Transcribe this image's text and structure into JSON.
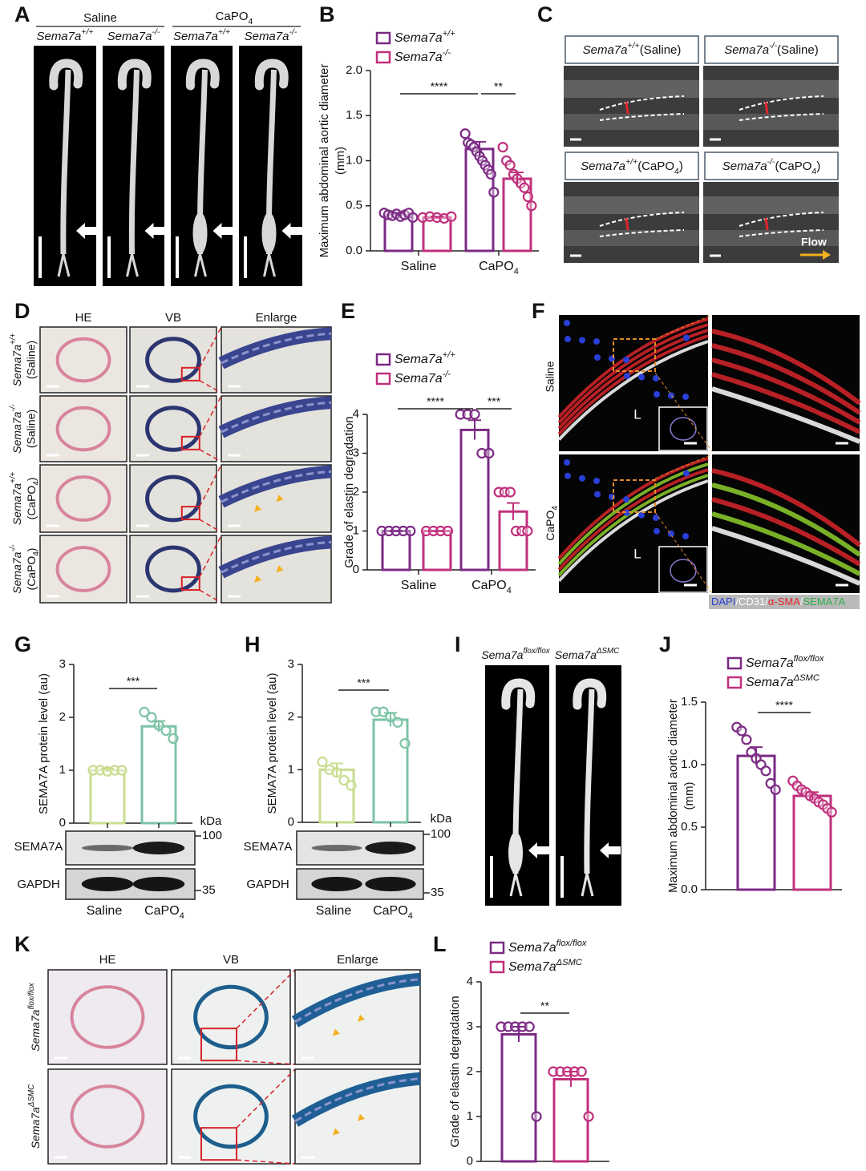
{
  "panel_labels": [
    "A",
    "B",
    "C",
    "D",
    "E",
    "F",
    "G",
    "H",
    "I",
    "J",
    "K",
    "L"
  ],
  "panel_a": {
    "groups": [
      "Saline",
      [
        {
          "text": "CaPO"
        },
        {
          "text": "4",
          "style": "sub"
        }
      ]
    ],
    "columns": [
      [
        {
          "text": "Sema7a",
          "style": "italic"
        },
        {
          "text": "+/+",
          "style": "sup italic"
        }
      ],
      [
        {
          "text": "Sema7a",
          "style": "italic"
        },
        {
          "text": "-/-",
          "style": "sup italic"
        }
      ],
      [
        {
          "text": "Sema7a",
          "style": "italic"
        },
        {
          "text": "+/+",
          "style": "sup italic"
        }
      ],
      [
        {
          "text": "Sema7a",
          "style": "italic"
        },
        {
          "text": "-/-",
          "style": "sup italic"
        }
      ]
    ]
  },
  "panel_c": {
    "images": [
      [
        {
          "text": "Sema7a",
          "style": "italic"
        },
        {
          "text": "+/+",
          "style": "sup italic"
        },
        {
          "text": "(Saline)"
        }
      ],
      [
        {
          "text": "Sema7a",
          "style": "italic"
        },
        {
          "text": "-/-",
          "style": "sup italic"
        },
        {
          "text": "(Saline)"
        }
      ],
      [
        {
          "text": "Sema7a",
          "style": "italic"
        },
        {
          "text": "+/+",
          "style": "sup italic"
        },
        {
          "text": "(CaPO"
        },
        {
          "text": "4",
          "style": "sub"
        },
        {
          "text": ")"
        }
      ],
      [
        {
          "text": "Sema7a",
          "style": "italic"
        },
        {
          "text": "-/-",
          "style": "sup italic"
        },
        {
          "text": "(CaPO"
        },
        {
          "text": "4",
          "style": "sub"
        },
        {
          "text": ")"
        }
      ]
    ],
    "flow": "Flow"
  },
  "panel_d": {
    "columns": [
      "HE",
      "VB",
      "Enlarge"
    ],
    "rows": [
      [
        [
          {
            "text": "Sema7a",
            "style": "italic"
          },
          {
            "text": "+/+",
            "style": "sup italic"
          }
        ],
        "(Saline)"
      ],
      [
        [
          {
            "text": "Sema7a",
            "style": "italic"
          },
          {
            "text": "-/-",
            "style": "sup italic"
          }
        ],
        "(Saline)"
      ],
      [
        [
          {
            "text": "Sema7a",
            "style": "italic"
          },
          {
            "text": "+/+",
            "style": "sup italic"
          }
        ],
        [
          {
            "text": "(CaPO"
          },
          {
            "text": "4",
            "style": "sub"
          },
          {
            "text": ")"
          }
        ]
      ],
      [
        [
          {
            "text": "Sema7a",
            "style": "italic"
          },
          {
            "text": "-/-",
            "style": "sup italic"
          }
        ],
        [
          {
            "text": "(CaPO"
          },
          {
            "text": "4",
            "style": "sub"
          },
          {
            "text": ")"
          }
        ]
      ]
    ]
  },
  "panel_f": {
    "rows": [
      "Saline",
      [
        {
          "text": "CaPO"
        },
        {
          "text": "4",
          "style": "sub"
        }
      ]
    ],
    "lumen": "L",
    "stains": [
      {
        "text": "DAPI",
        "color": "#2a3fd8"
      },
      {
        "text": "CD31",
        "color": "#ffffff"
      },
      {
        "text": "α-SMA",
        "color": "#e0242a"
      },
      {
        "text": "SEMA7A",
        "color": "#2fae4a"
      }
    ],
    "separator": "/"
  },
  "panel_i": {
    "columns": [
      [
        {
          "text": "Sema7a",
          "style": "italic"
        },
        {
          "text": "flox/flox",
          "style": "sup italic"
        }
      ],
      [
        {
          "text": "Sema7a",
          "style": "italic"
        },
        {
          "text": "ΔSMC",
          "style": "sup italic"
        }
      ]
    ]
  },
  "panel_k": {
    "columns": [
      "HE",
      "VB",
      "Enlarge"
    ],
    "rows": [
      [
        {
          "text": "Sema7a",
          "style": "italic"
        },
        {
          "text": "flox/flox",
          "style": "sup italic"
        }
      ],
      [
        {
          "text": "Sema7a",
          "style": "italic"
        },
        {
          "text": "ΔSMC",
          "style": "sup italic"
        }
      ]
    ]
  },
  "chart_data": [
    {
      "type": "bar",
      "ylabel": [
        "Maximum abdominal aortic diameter",
        "(mm)"
      ],
      "ylim": [
        0,
        2
      ],
      "yticks": [
        {
          "value": 0,
          "label": "0.0"
        },
        {
          "value": 0.5,
          "label": "0.5"
        },
        {
          "value": 1,
          "label": "1.0"
        },
        {
          "value": 1.5,
          "label": "1.5"
        },
        {
          "value": 2,
          "label": "2.0"
        }
      ],
      "categories": [
        "Saline",
        [
          {
            "text": "CaPO"
          },
          {
            "text": "4",
            "style": "sub"
          }
        ]
      ],
      "series": [
        {
          "name": [
            {
              "text": "Sema7a",
              "style": "italic"
            },
            {
              "text": "+/+",
              "style": "sup italic"
            }
          ],
          "color": "#7b2a84",
          "values": [
            0.4,
            1.13
          ],
          "errors": [
            0.02,
            0.08
          ],
          "points": [
            [
              0.42,
              0.4,
              0.39,
              0.41,
              0.38,
              0.4,
              0.42,
              0.37
            ],
            [
              1.3,
              1.2,
              1.18,
              1.15,
              1.1,
              1.05,
              1.0,
              0.95,
              0.9,
              0.85,
              0.65
            ]
          ]
        },
        {
          "name": [
            {
              "text": "Sema7a",
              "style": "italic"
            },
            {
              "text": "-/-",
              "style": "sup italic"
            }
          ],
          "color": "#c0307c",
          "values": [
            0.37,
            0.8
          ],
          "errors": [
            0.01,
            0.07
          ],
          "points": [
            [
              0.37,
              0.38,
              0.37,
              0.36,
              0.38
            ],
            [
              1.15,
              1.0,
              0.95,
              0.85,
              0.8,
              0.75,
              0.7,
              0.6,
              0.5
            ]
          ]
        }
      ],
      "significance": [
        "****",
        "**"
      ]
    },
    {
      "type": "bar",
      "ylabel": "Grade of elastin degradation",
      "ylim": [
        0,
        4
      ],
      "yticks": [
        0,
        1,
        2,
        3,
        4
      ],
      "categories": [
        "Saline",
        [
          {
            "text": "CaPO"
          },
          {
            "text": "4",
            "style": "sub"
          }
        ]
      ],
      "series": [
        {
          "name": [
            {
              "text": "Sema7a",
              "style": "italic"
            },
            {
              "text": "+/+",
              "style": "sup italic"
            }
          ],
          "color": "#7b2a84",
          "values": [
            1,
            3.6
          ],
          "errors": [
            0,
            0.25
          ],
          "points": [
            [
              1,
              1,
              1,
              1,
              1
            ],
            [
              4,
              4,
              4,
              3,
              3
            ]
          ]
        },
        {
          "name": [
            {
              "text": "Sema7a",
              "style": "italic"
            },
            {
              "text": "-/-",
              "style": "sup italic"
            }
          ],
          "color": "#c0307c",
          "values": [
            1,
            1.5
          ],
          "errors": [
            0,
            0.22
          ],
          "points": [
            [
              1,
              1,
              1,
              1
            ],
            [
              2,
              2,
              2,
              1,
              1,
              1
            ]
          ]
        }
      ],
      "significance": [
        "****",
        "***"
      ]
    },
    {
      "type": "bar",
      "ylabel": "SEMA7A  protein level (au)",
      "ylim": [
        0,
        3
      ],
      "yticks": [
        0,
        1,
        2,
        3
      ],
      "categories": [
        "Saline",
        [
          {
            "text": "CaPO"
          },
          {
            "text": "4",
            "style": "sub"
          }
        ]
      ],
      "colors": [
        "#c9dd8f",
        "#7cc3a6"
      ],
      "values": [
        1.0,
        1.83
      ],
      "errors": [
        0.03,
        0.1
      ],
      "points": [
        [
          1.0,
          1.0,
          0.98,
          1.0,
          1.0
        ],
        [
          2.1,
          2.0,
          1.85,
          1.75,
          1.6
        ]
      ],
      "significance": [
        "***"
      ],
      "blot": {
        "unit": "kDa",
        "rows": [
          "SEMA7A",
          "GAPDH"
        ],
        "markers": [
          "100",
          "35"
        ]
      }
    },
    {
      "type": "bar",
      "ylabel": "SEMA7A  protein level (au)",
      "ylim": [
        0,
        3
      ],
      "yticks": [
        0,
        1,
        2,
        3
      ],
      "categories": [
        "Saline",
        [
          {
            "text": "CaPO"
          },
          {
            "text": "4",
            "style": "sub"
          }
        ]
      ],
      "colors": [
        "#c9dd8f",
        "#7cc3a6"
      ],
      "values": [
        1.0,
        1.95
      ],
      "errors": [
        0.12,
        0.13
      ],
      "points": [
        [
          1.15,
          1.0,
          0.95,
          0.8,
          0.7
        ],
        [
          2.1,
          2.1,
          2.0,
          1.9,
          1.5
        ]
      ],
      "significance": [
        "***"
      ],
      "blot": {
        "unit": "kDa",
        "rows": [
          "SEMA7A",
          "GAPDH"
        ],
        "markers": [
          "100",
          "35"
        ]
      }
    },
    {
      "type": "bar",
      "ylabel": [
        "Maximum abdominal aortic diameter",
        "(mm)"
      ],
      "ylim": [
        0,
        1.5
      ],
      "yticks": [
        {
          "value": 0,
          "label": "0.0"
        },
        {
          "value": 0.5,
          "label": "0.5"
        },
        {
          "value": 1,
          "label": "1.0"
        },
        {
          "value": 1.5,
          "label": "1.5"
        }
      ],
      "series": [
        {
          "name": [
            {
              "text": "Sema7a",
              "style": "italic"
            },
            {
              "text": "flox/flox",
              "style": "sup italic"
            }
          ],
          "color": "#7b2a84",
          "values": [
            1.07
          ],
          "errors": [
            0.07
          ],
          "points": [
            [
              1.3,
              1.27,
              1.2,
              1.1,
              1.05,
              1.0,
              0.95,
              0.85,
              0.8
            ]
          ]
        },
        {
          "name": [
            {
              "text": "Sema7a",
              "style": "italic"
            },
            {
              "text": "ΔSMC",
              "style": "sup italic"
            }
          ],
          "color": "#c0307c",
          "values": [
            0.75
          ],
          "errors": [
            0.03
          ],
          "points": [
            [
              0.87,
              0.83,
              0.8,
              0.78,
              0.75,
              0.73,
              0.7,
              0.68,
              0.65,
              0.62
            ]
          ]
        }
      ],
      "significance": [
        "****"
      ]
    },
    {
      "type": "bar",
      "ylabel": "Grade of elastin degradation",
      "ylim": [
        0,
        4
      ],
      "yticks": [
        0,
        1,
        2,
        3,
        4
      ],
      "series": [
        {
          "name": [
            {
              "text": "Sema7a",
              "style": "italic"
            },
            {
              "text": "flox/flox",
              "style": "sup italic"
            }
          ],
          "color": "#7b2a84",
          "values": [
            2.83
          ],
          "errors": [
            0.17
          ],
          "points": [
            [
              3,
              3,
              3,
              3,
              3,
              1
            ]
          ]
        },
        {
          "name": [
            {
              "text": "Sema7a",
              "style": "italic"
            },
            {
              "text": "ΔSMC",
              "style": "sup italic"
            }
          ],
          "color": "#c0307c",
          "values": [
            1.83
          ],
          "errors": [
            0.17
          ],
          "points": [
            [
              2,
              2,
              2,
              2,
              2,
              1
            ]
          ]
        }
      ],
      "significance": [
        "**"
      ]
    }
  ]
}
